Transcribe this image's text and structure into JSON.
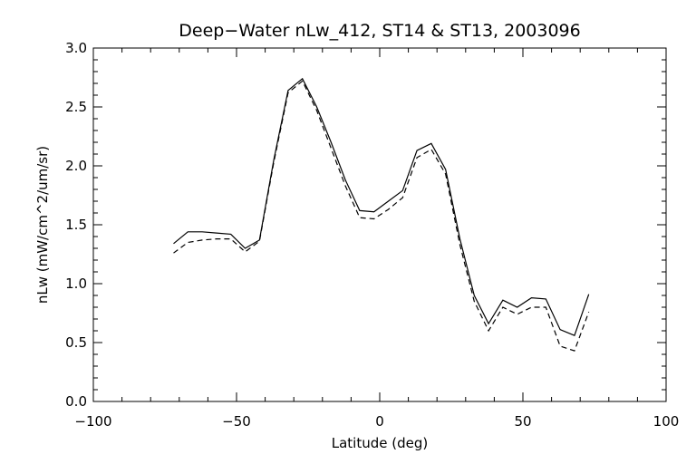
{
  "chart_data": {
    "type": "line",
    "title": "Deep−Water nLw_412, ST14 & ST13, 2003096",
    "xlabel": "Latitude (deg)",
    "ylabel": "nLw (mW/cm^2/um/sr)",
    "xlim": [
      -100,
      100
    ],
    "ylim": [
      0.0,
      3.0
    ],
    "x_ticks": [
      -100,
      -50,
      0,
      50,
      100
    ],
    "x_tick_labels": [
      "−100",
      "−50",
      "0",
      "50",
      "100"
    ],
    "y_ticks": [
      0.0,
      0.5,
      1.0,
      1.5,
      2.0,
      2.5,
      3.0
    ],
    "y_tick_labels": [
      "0.0",
      "0.5",
      "1.0",
      "1.5",
      "2.0",
      "2.5",
      "3.0"
    ],
    "grid": false,
    "legend": "none",
    "series": [
      {
        "style": "solid",
        "color": "#000000",
        "x": [
          -72,
          -67,
          -62,
          -57,
          -52,
          -47,
          -42,
          -37,
          -32,
          -27,
          -22,
          -17,
          -12,
          -7,
          -2,
          3,
          8,
          13,
          18,
          23,
          28,
          33,
          38,
          43,
          48,
          53,
          58,
          63,
          68,
          73
        ],
        "y": [
          1.34,
          1.44,
          1.44,
          1.43,
          1.42,
          1.3,
          1.37,
          2.05,
          2.64,
          2.74,
          2.5,
          2.2,
          1.88,
          1.62,
          1.61,
          1.7,
          1.79,
          2.13,
          2.19,
          1.97,
          1.38,
          0.9,
          0.66,
          0.86,
          0.8,
          0.88,
          0.87,
          0.61,
          0.56,
          0.91
        ]
      },
      {
        "style": "dashed",
        "color": "#000000",
        "x": [
          -72,
          -67,
          -62,
          -57,
          -52,
          -47,
          -42,
          -37,
          -32,
          -27,
          -22,
          -17,
          -12,
          -7,
          -2,
          3,
          8,
          13,
          18,
          23,
          28,
          33,
          38,
          43,
          48,
          53,
          58,
          63,
          68,
          73
        ],
        "y": [
          1.26,
          1.35,
          1.37,
          1.38,
          1.38,
          1.27,
          1.36,
          2.03,
          2.62,
          2.72,
          2.47,
          2.15,
          1.83,
          1.56,
          1.55,
          1.63,
          1.73,
          2.07,
          2.14,
          1.93,
          1.33,
          0.85,
          0.6,
          0.8,
          0.74,
          0.8,
          0.8,
          0.47,
          0.43,
          0.76
        ]
      }
    ]
  }
}
